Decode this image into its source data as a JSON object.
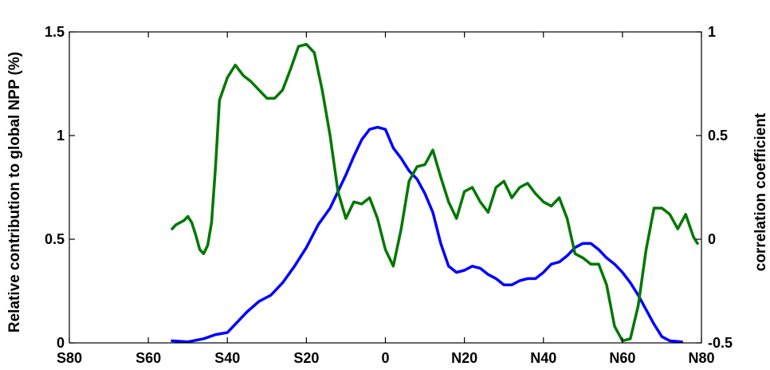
{
  "chart_data": {
    "type": "line",
    "xlabel": "",
    "ylabel_left": "Relative contribution to global NPP (%)",
    "ylabel_right": "correlation coefficient",
    "x_ticks": [
      -80,
      -60,
      -40,
      -20,
      0,
      20,
      40,
      60,
      80
    ],
    "x_tick_labels": [
      "S80",
      "S60",
      "S40",
      "S20",
      "0",
      "N20",
      "N40",
      "N60",
      "N80"
    ],
    "xlim": [
      -80,
      80
    ],
    "ylim_left": [
      0,
      1.5
    ],
    "ylim_right": [
      -0.5,
      1
    ],
    "y_left_ticks": [
      0,
      0.5,
      1,
      1.5
    ],
    "y_left_tick_labels": [
      "0",
      "0.5",
      "1",
      "1.5"
    ],
    "y_right_ticks": [
      -0.5,
      0,
      0.5,
      1
    ],
    "y_right_tick_labels": [
      "-0.5",
      "0",
      "0.5",
      "1"
    ],
    "grid": false,
    "series": [
      {
        "axis": "left",
        "color": "#0000ff",
        "points": [
          [
            -54,
            0.01
          ],
          [
            -50,
            0.005
          ],
          [
            -46,
            0.02
          ],
          [
            -43,
            0.04
          ],
          [
            -40,
            0.05
          ],
          [
            -38,
            0.09
          ],
          [
            -35,
            0.15
          ],
          [
            -32,
            0.2
          ],
          [
            -29,
            0.23
          ],
          [
            -26,
            0.29
          ],
          [
            -23,
            0.37
          ],
          [
            -20,
            0.46
          ],
          [
            -17,
            0.57
          ],
          [
            -14,
            0.65
          ],
          [
            -12,
            0.73
          ],
          [
            -10,
            0.81
          ],
          [
            -8,
            0.9
          ],
          [
            -6,
            0.98
          ],
          [
            -4,
            1.03
          ],
          [
            -2,
            1.04
          ],
          [
            0,
            1.03
          ],
          [
            2,
            0.94
          ],
          [
            4,
            0.89
          ],
          [
            6,
            0.83
          ],
          [
            8,
            0.79
          ],
          [
            10,
            0.72
          ],
          [
            12,
            0.63
          ],
          [
            14,
            0.48
          ],
          [
            16,
            0.37
          ],
          [
            18,
            0.34
          ],
          [
            20,
            0.35
          ],
          [
            22,
            0.37
          ],
          [
            24,
            0.36
          ],
          [
            26,
            0.33
          ],
          [
            28,
            0.31
          ],
          [
            30,
            0.28
          ],
          [
            32,
            0.28
          ],
          [
            34,
            0.3
          ],
          [
            36,
            0.31
          ],
          [
            38,
            0.31
          ],
          [
            40,
            0.34
          ],
          [
            42,
            0.38
          ],
          [
            44,
            0.39
          ],
          [
            46,
            0.42
          ],
          [
            48,
            0.46
          ],
          [
            50,
            0.48
          ],
          [
            52,
            0.48
          ],
          [
            54,
            0.45
          ],
          [
            56,
            0.41
          ],
          [
            58,
            0.38
          ],
          [
            60,
            0.34
          ],
          [
            62,
            0.29
          ],
          [
            64,
            0.23
          ],
          [
            66,
            0.16
          ],
          [
            68,
            0.09
          ],
          [
            70,
            0.03
          ],
          [
            72,
            0.01
          ],
          [
            75,
            0.005
          ]
        ]
      },
      {
        "axis": "right",
        "color": "#007800",
        "points": [
          [
            -54,
            0.05
          ],
          [
            -53,
            0.07
          ],
          [
            -52,
            0.08
          ],
          [
            -51,
            0.09
          ],
          [
            -50,
            0.11
          ],
          [
            -49,
            0.08
          ],
          [
            -48,
            0.02
          ],
          [
            -47,
            -0.05
          ],
          [
            -46,
            -0.07
          ],
          [
            -45,
            -0.03
          ],
          [
            -44,
            0.08
          ],
          [
            -43,
            0.35
          ],
          [
            -42,
            0.67
          ],
          [
            -40,
            0.78
          ],
          [
            -38,
            0.84
          ],
          [
            -36,
            0.79
          ],
          [
            -34,
            0.76
          ],
          [
            -32,
            0.72
          ],
          [
            -30,
            0.68
          ],
          [
            -28,
            0.68
          ],
          [
            -26,
            0.72
          ],
          [
            -24,
            0.82
          ],
          [
            -22,
            0.93
          ],
          [
            -20,
            0.94
          ],
          [
            -18,
            0.9
          ],
          [
            -16,
            0.72
          ],
          [
            -14,
            0.5
          ],
          [
            -12,
            0.23
          ],
          [
            -10,
            0.1
          ],
          [
            -8,
            0.18
          ],
          [
            -6,
            0.17
          ],
          [
            -4,
            0.2
          ],
          [
            -2,
            0.1
          ],
          [
            0,
            -0.05
          ],
          [
            2,
            -0.13
          ],
          [
            4,
            0.05
          ],
          [
            6,
            0.28
          ],
          [
            8,
            0.35
          ],
          [
            10,
            0.36
          ],
          [
            12,
            0.43
          ],
          [
            14,
            0.3
          ],
          [
            16,
            0.18
          ],
          [
            18,
            0.1
          ],
          [
            20,
            0.23
          ],
          [
            22,
            0.25
          ],
          [
            24,
            0.18
          ],
          [
            26,
            0.13
          ],
          [
            28,
            0.25
          ],
          [
            30,
            0.28
          ],
          [
            32,
            0.2
          ],
          [
            34,
            0.25
          ],
          [
            36,
            0.27
          ],
          [
            38,
            0.22
          ],
          [
            40,
            0.18
          ],
          [
            42,
            0.16
          ],
          [
            44,
            0.2
          ],
          [
            46,
            0.1
          ],
          [
            48,
            -0.07
          ],
          [
            50,
            -0.09
          ],
          [
            52,
            -0.12
          ],
          [
            54,
            -0.12
          ],
          [
            56,
            -0.22
          ],
          [
            58,
            -0.42
          ],
          [
            60,
            -0.49
          ],
          [
            62,
            -0.48
          ],
          [
            64,
            -0.32
          ],
          [
            66,
            -0.05
          ],
          [
            68,
            0.15
          ],
          [
            70,
            0.15
          ],
          [
            72,
            0.12
          ],
          [
            74,
            0.05
          ],
          [
            76,
            0.12
          ],
          [
            78,
            0.01
          ],
          [
            79,
            -0.02
          ]
        ]
      }
    ]
  }
}
